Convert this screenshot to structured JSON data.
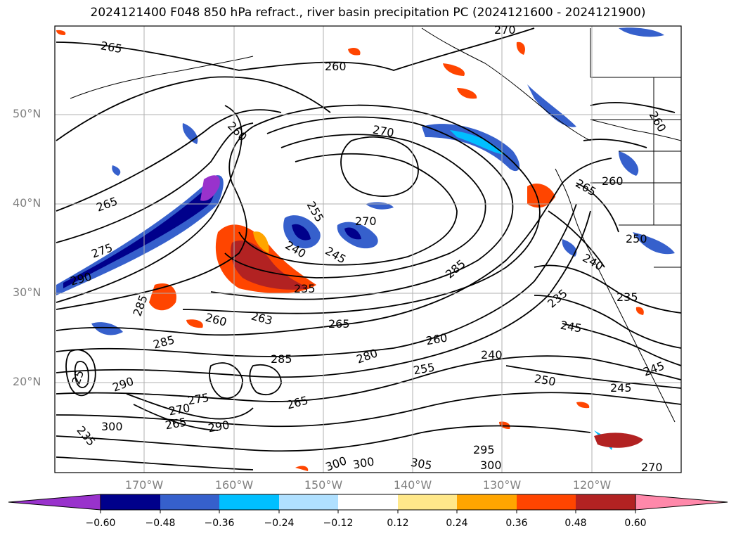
{
  "title": "2024121400 F048 850 hPa refract., river basin precipitation PC (2024121600 - 2024121900)",
  "map": {
    "lat_labels": [
      "50°N",
      "40°N",
      "30°N",
      "20°N"
    ],
    "lon_labels": [
      "170°W",
      "160°W",
      "150°W",
      "140°W",
      "130°W",
      "120°W"
    ],
    "contour_labels": [
      "265",
      "260",
      "270",
      "270",
      "260",
      "265",
      "260",
      "255",
      "270",
      "265",
      "275",
      "240",
      "245",
      "290",
      "235",
      "285",
      "260",
      "263",
      "265",
      "285",
      "290",
      "280",
      "260",
      "255",
      "240",
      "285",
      "275",
      "265",
      "290",
      "270",
      "265",
      "250",
      "300",
      "300",
      "300",
      "305",
      "300",
      "295",
      "235",
      "245",
      "235",
      "245",
      "245",
      "270",
      "235",
      "260",
      "240",
      "285",
      "250",
      "25"
    ],
    "colors": {
      "contour": "#000000",
      "grid": "#b0b0b0",
      "coast": "#000000"
    }
  },
  "colorbar": {
    "labels": [
      "−0.60",
      "−0.48",
      "−0.36",
      "−0.24",
      "−0.12",
      "0.12",
      "0.24",
      "0.36",
      "0.48",
      "0.60"
    ],
    "colors": [
      "#9932cc",
      "#00008b",
      "#3660cc",
      "#00bfff",
      "#b0e0ff",
      "#ffffff",
      "#ffe88a",
      "#ffa500",
      "#ff4500",
      "#b22222",
      "#ff88aa"
    ]
  }
}
